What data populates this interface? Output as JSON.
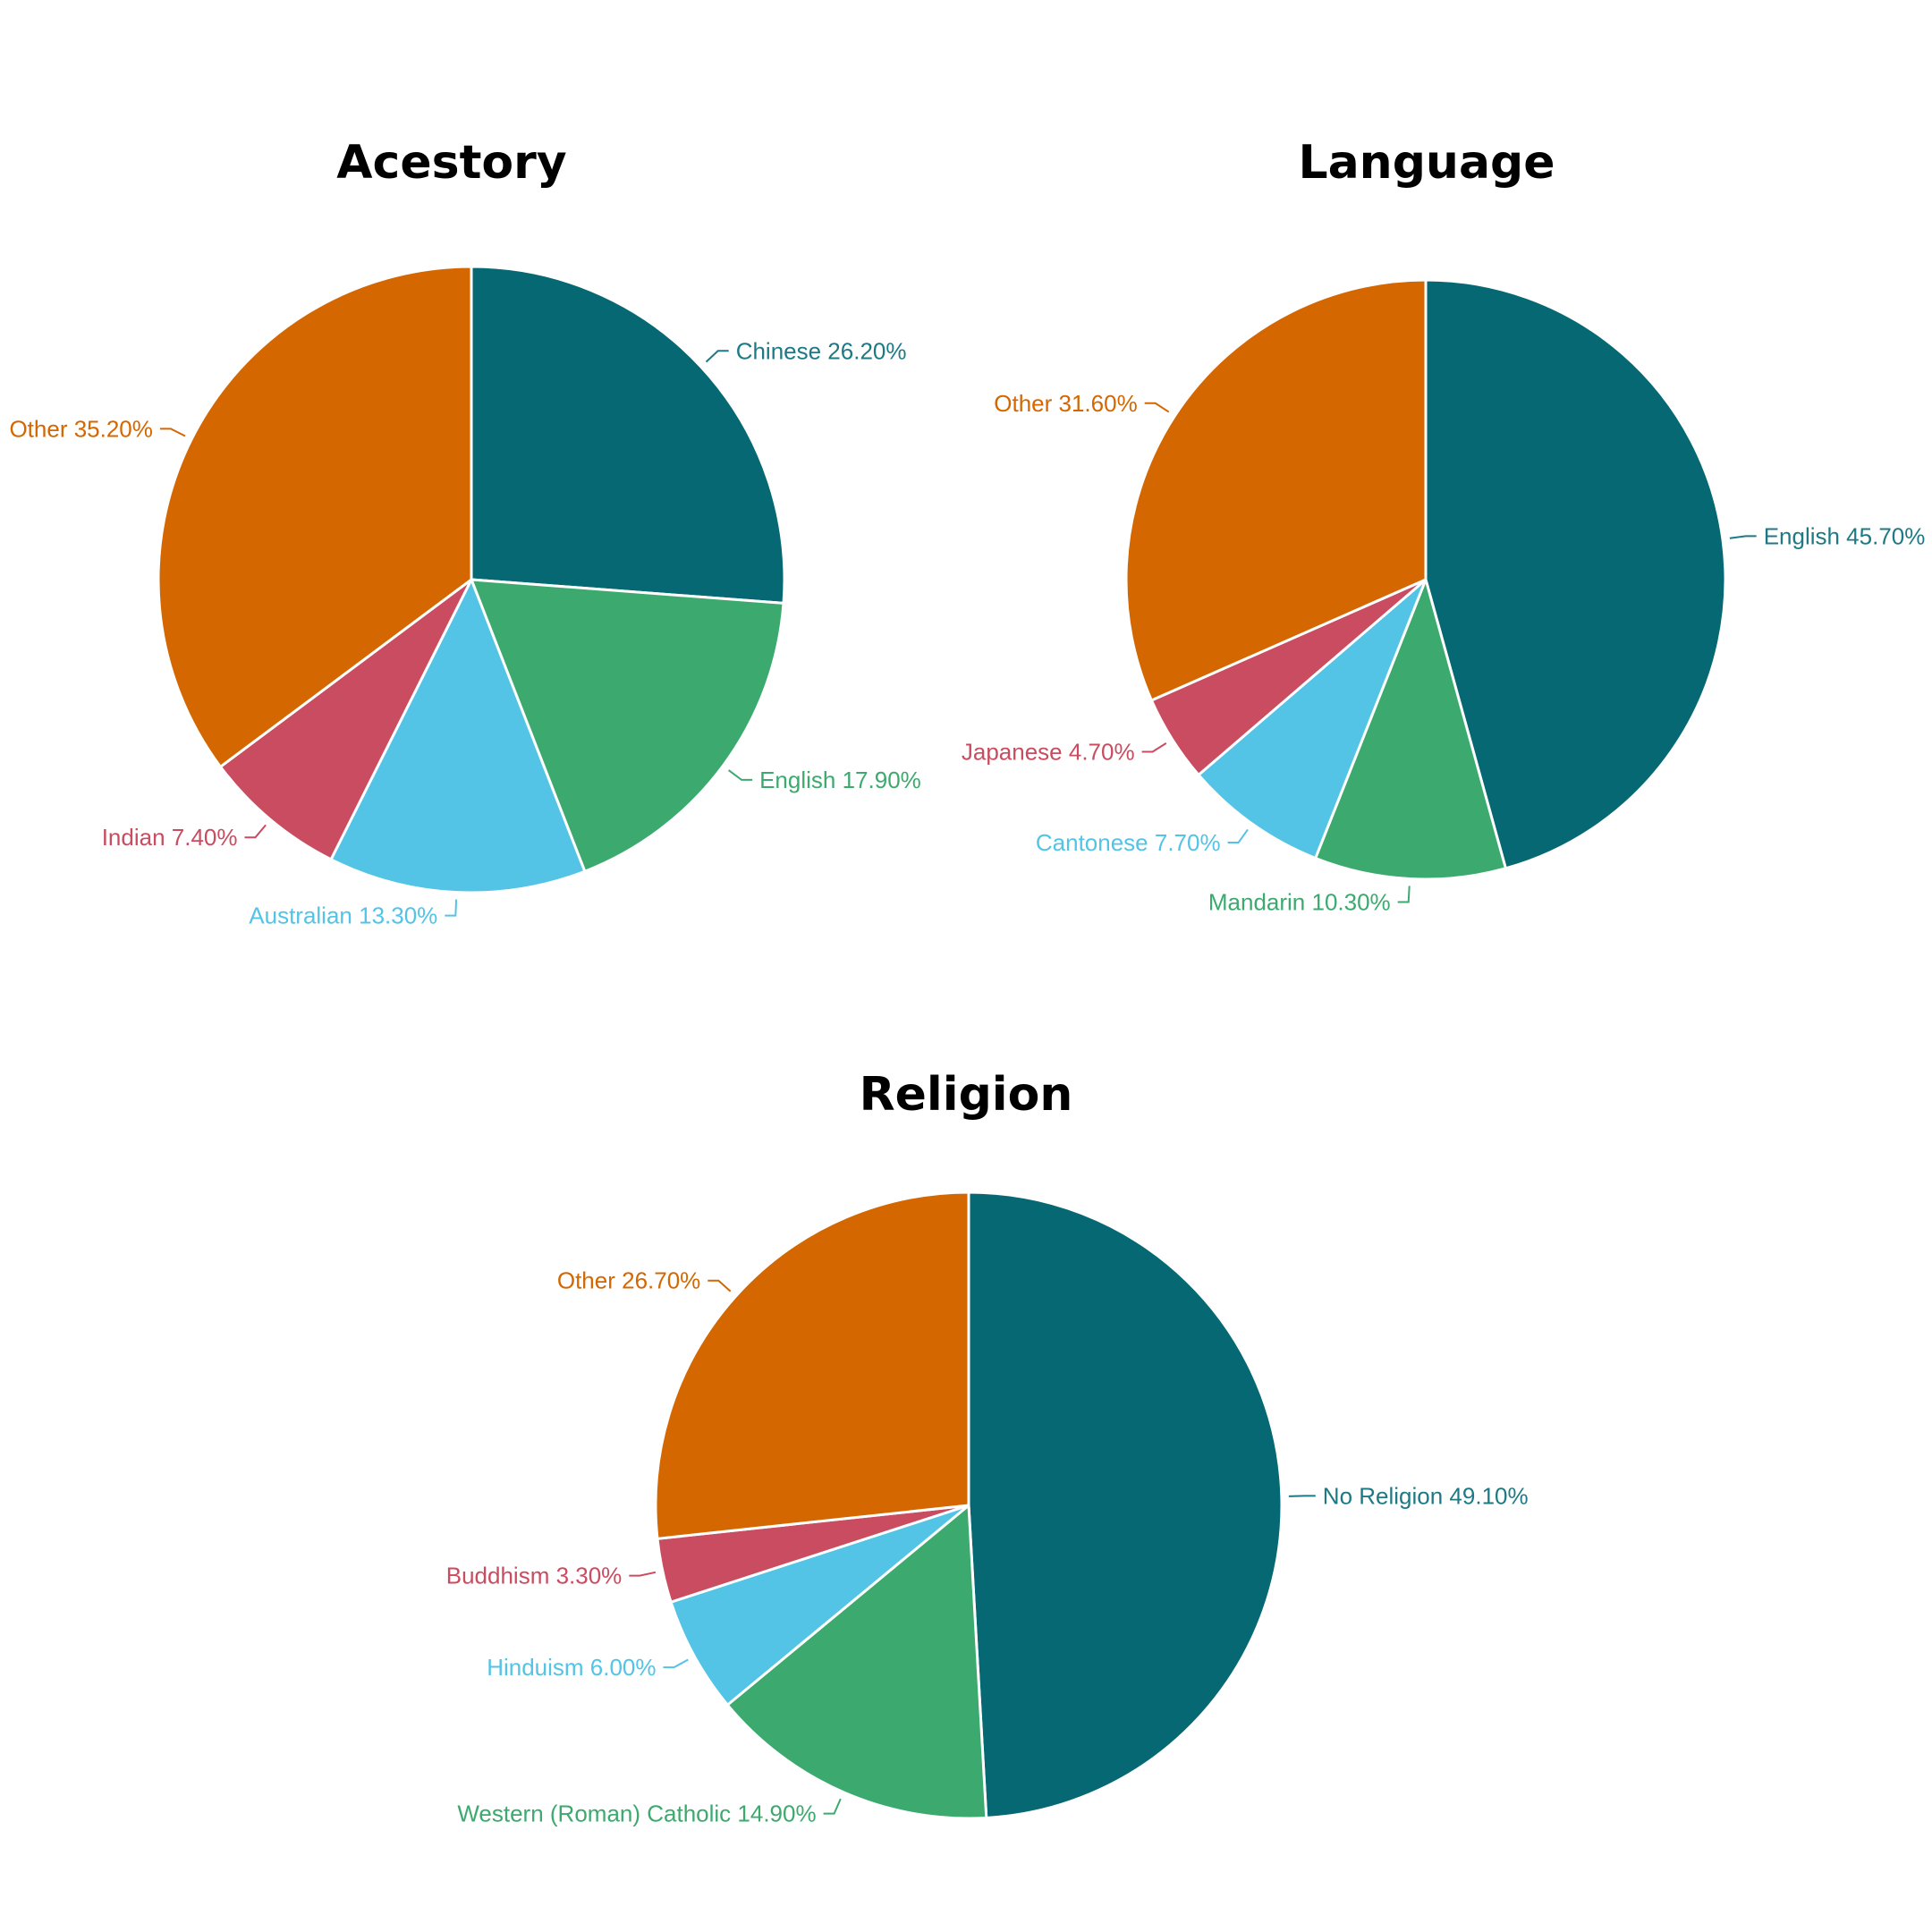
{
  "colors": {
    "teal": "#056872",
    "green": "#3caa6e",
    "sky": "#53c3e6",
    "red": "#c94c60",
    "orange": "#d46700",
    "label_teal": "#1d7a84"
  },
  "chart_data": [
    {
      "type": "pie",
      "title": "Acestory",
      "slices": [
        {
          "label": "Chinese 26.20%",
          "category": "Chinese",
          "value": 26.2,
          "color": "#056872",
          "label_color": "#1d7a84"
        },
        {
          "label": "English 17.90%",
          "category": "English",
          "value": 17.9,
          "color": "#3caa6e",
          "label_color": "#3caa6e"
        },
        {
          "label": "Australian 13.30%",
          "category": "Australian",
          "value": 13.3,
          "color": "#53c3e6",
          "label_color": "#53c3e6"
        },
        {
          "label": "Indian 7.40%",
          "category": "Indian",
          "value": 7.4,
          "color": "#c94c60",
          "label_color": "#c94c60"
        },
        {
          "label": "Other 35.20%",
          "category": "Other",
          "value": 35.2,
          "color": "#d46700",
          "label_color": "#d46700"
        }
      ]
    },
    {
      "type": "pie",
      "title": "Language",
      "slices": [
        {
          "label": "English 45.70%",
          "category": "English",
          "value": 45.7,
          "color": "#056872",
          "label_color": "#1d7a84"
        },
        {
          "label": "Mandarin 10.30%",
          "category": "Mandarin",
          "value": 10.3,
          "color": "#3caa6e",
          "label_color": "#3caa6e"
        },
        {
          "label": "Cantonese 7.70%",
          "category": "Cantonese",
          "value": 7.7,
          "color": "#53c3e6",
          "label_color": "#53c3e6"
        },
        {
          "label": "Japanese 4.70%",
          "category": "Japanese",
          "value": 4.7,
          "color": "#c94c60",
          "label_color": "#c94c60"
        },
        {
          "label": "Other 31.60%",
          "category": "Other",
          "value": 31.6,
          "color": "#d46700",
          "label_color": "#d46700"
        }
      ]
    },
    {
      "type": "pie",
      "title": "Religion",
      "slices": [
        {
          "label": "No Religion 49.10%",
          "category": "No Religion",
          "value": 49.1,
          "color": "#056872",
          "label_color": "#1d7a84"
        },
        {
          "label": "Western (Roman) Catholic 14.90%",
          "category": "Western (Roman) Catholic",
          "value": 14.9,
          "color": "#3caa6e",
          "label_color": "#3caa6e"
        },
        {
          "label": "Hinduism 6.00%",
          "category": "Hinduism",
          "value": 6.0,
          "color": "#53c3e6",
          "label_color": "#53c3e6"
        },
        {
          "label": "Buddhism 3.30%",
          "category": "Buddhism",
          "value": 3.3,
          "color": "#c94c60",
          "label_color": "#c94c60"
        },
        {
          "label": "Other 26.70%",
          "category": "Other",
          "value": 26.7,
          "color": "#d46700",
          "label_color": "#d46700"
        }
      ]
    }
  ]
}
